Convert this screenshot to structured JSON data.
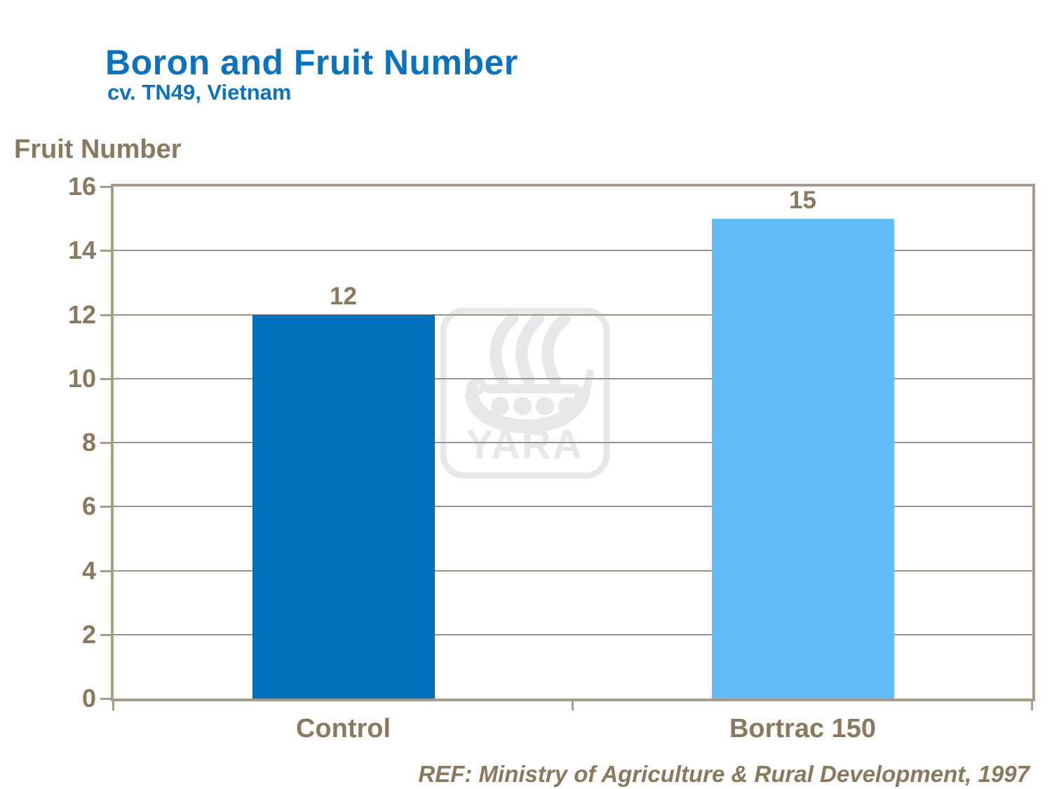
{
  "chart_data": {
    "type": "bar",
    "title": "Boron and Fruit Number",
    "subtitle": "cv. TN49, Vietnam",
    "categories": [
      "Control",
      "Bortrac 150"
    ],
    "values": [
      12,
      15
    ],
    "data_labels": [
      "12",
      "15"
    ],
    "bar_colors": [
      "#0071BC",
      "#63BDF8"
    ],
    "xlabel": "",
    "ylabel": "Fruit Number",
    "ylim": [
      0,
      16
    ],
    "ytick_step": 2,
    "yticks": [
      0,
      2,
      4,
      6,
      8,
      10,
      12,
      14,
      16
    ],
    "grid": true,
    "legend": "none",
    "reference": "REF: Ministry of Agriculture & Rural Development, 1997"
  },
  "watermark": {
    "brand": "YARA"
  },
  "colors": {
    "title_blue": "#0B72BE",
    "bar_dark_blue": "#0071BC",
    "bar_light_blue": "#63BDF8",
    "text_brown": "#8A795E",
    "frame_tan": "#A79B8A",
    "gridline_gray": "#9E9588",
    "watermark_gray": "#E8E8E8"
  }
}
